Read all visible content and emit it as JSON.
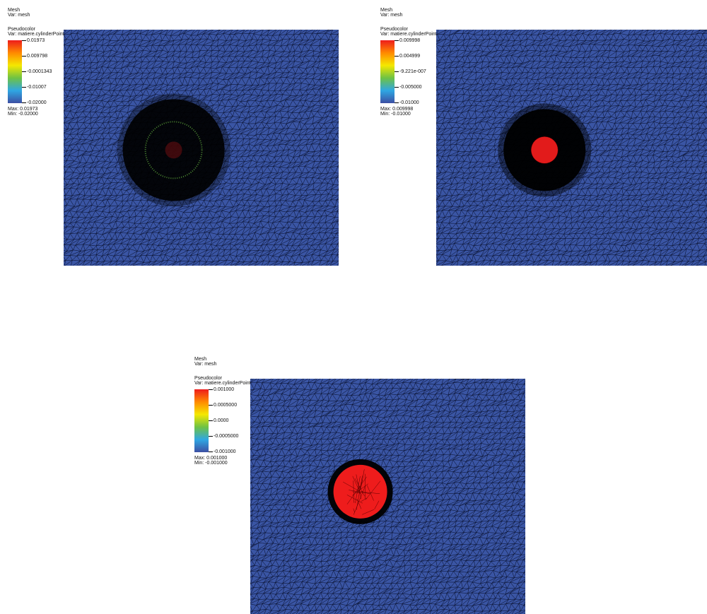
{
  "colors": {
    "mesh_blue": "#3a55a4",
    "colormap": [
      "#3c4fa3",
      "#2fa7e3",
      "#6ec244",
      "#f5e800",
      "#ff8a00",
      "#ee1c1c"
    ],
    "marker_red": "#ee1c1c",
    "ring_green": "#6ec244"
  },
  "panels": [
    {
      "mesh_title": "Mesh",
      "mesh_var": "Var: mesh",
      "pc_title": "Pseudocolor",
      "pc_var": "Var: matiere.cylinderPoint.max",
      "ticks": [
        "0.01973",
        "0.009798",
        "-0.0001343",
        "-0.01007",
        "-0.02000"
      ],
      "max_text": "Max:  0.01973",
      "min_text": "Min: -0.02000",
      "feature": "dense-green-ring"
    },
    {
      "mesh_title": "Mesh",
      "mesh_var": "Var: mesh",
      "pc_title": "Pseudocolor",
      "pc_var": "Var: matiere.cylinderPoint.max",
      "ticks": [
        "0.009998",
        "0.004999",
        "-9.221e-007",
        "-0.005000",
        "-0.01000"
      ],
      "max_text": "Max:  0.009998",
      "min_text": "Min: -0.01000",
      "feature": "dense-red-core"
    },
    {
      "mesh_title": "Mesh",
      "mesh_var": "Var: mesh",
      "pc_title": "Pseudocolor",
      "pc_var": "Var: matiere.cylinderPoint.max",
      "ticks": [
        "0.001000",
        "0.0005000",
        "0.0000",
        "-0.0005000",
        "-0.001000"
      ],
      "max_text": "Max:  0.001000",
      "min_text": "Min: -0.001000",
      "feature": "red-disc"
    }
  ]
}
